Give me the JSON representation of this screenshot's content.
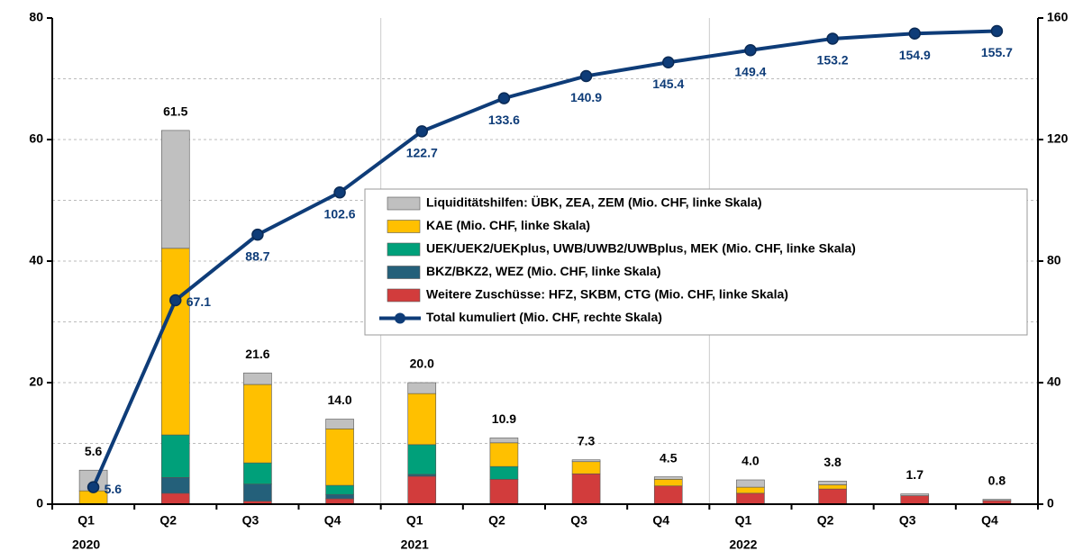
{
  "chart_data": {
    "type": "bar",
    "categories": [
      "Q1",
      "Q2",
      "Q3",
      "Q4",
      "Q1",
      "Q2",
      "Q3",
      "Q4",
      "Q1",
      "Q2",
      "Q3",
      "Q4"
    ],
    "years": [
      "2020",
      null,
      null,
      null,
      "2021",
      null,
      null,
      null,
      "2022",
      null,
      null,
      null
    ],
    "series": [
      {
        "name": "Weitere Zuschüsse: HFZ, SKBM, CTG (Mio. CHF, linke Skala)",
        "color": "#d23c3c",
        "type": "bar",
        "axis": "y",
        "values": [
          0,
          1.8,
          0.5,
          0.9,
          4.6,
          4.1,
          5.0,
          3.0,
          1.8,
          2.5,
          1.4,
          0.6
        ]
      },
      {
        "name": "BKZ/BKZ2, WEZ (Mio. CHF, linke Skala)",
        "color": "#24607a",
        "type": "bar",
        "axis": "y",
        "values": [
          0,
          2.6,
          2.8,
          0.7,
          0.3,
          0,
          0,
          0,
          0,
          0,
          0,
          0
        ]
      },
      {
        "name": "UEK/UEK2/UEKplus, UWB/UWB2/UWBplus, MEK (Mio. CHF, linke Skala)",
        "color": "#00a07a",
        "type": "bar",
        "axis": "y",
        "values": [
          0,
          7.0,
          3.5,
          1.5,
          4.9,
          2.1,
          0,
          0,
          0,
          0,
          0,
          0
        ]
      },
      {
        "name": "KAE (Mio. CHF, linke Skala)",
        "color": "#ffc000",
        "type": "bar",
        "axis": "y",
        "values": [
          2.2,
          30.7,
          12.9,
          9.3,
          8.4,
          3.9,
          2.0,
          1.1,
          1.0,
          0.7,
          0,
          0
        ]
      },
      {
        "name": "Liquiditätshilfen: ÜBK, ZEA, ZEM (Mio. CHF, linke Skala)",
        "color": "#c0c0c0",
        "type": "bar",
        "axis": "y",
        "values": [
          3.4,
          19.4,
          1.9,
          1.6,
          1.8,
          0.8,
          0.3,
          0.4,
          1.2,
          0.6,
          0.3,
          0.2
        ]
      },
      {
        "name": "Total kumuliert (Mio. CHF, rechte Skala)",
        "color": "#0e3c78",
        "type": "line",
        "axis": "y2",
        "values": [
          5.6,
          67.1,
          88.7,
          102.6,
          122.7,
          133.6,
          140.9,
          145.4,
          149.4,
          153.2,
          154.9,
          155.7
        ]
      }
    ],
    "totals": [
      5.6,
      61.5,
      21.6,
      14.0,
      20.0,
      10.9,
      7.3,
      4.5,
      4.0,
      3.8,
      1.7,
      0.8
    ],
    "total_labels": [
      "5.6",
      "61.5",
      "21.6",
      "14.0",
      "20.0",
      "10.9",
      "7.3",
      "4.5",
      "4.0",
      "3.8",
      "1.7",
      "0.8"
    ],
    "ylim": [
      0,
      80
    ],
    "yticks": [
      0,
      20,
      40,
      60,
      80
    ],
    "minor_yticks": [
      10,
      30,
      50,
      70
    ],
    "y2lim": [
      0,
      160
    ],
    "y2ticks": [
      0,
      40,
      80,
      120,
      160
    ],
    "grid": true
  }
}
